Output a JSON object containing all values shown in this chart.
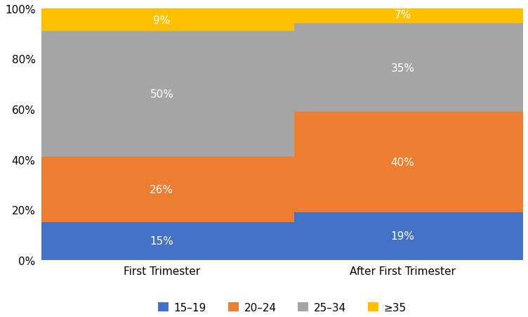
{
  "categories": [
    "First Trimester",
    "After First Trimester"
  ],
  "series": {
    "15–19": [
      15,
      19
    ],
    "20–24": [
      26,
      40
    ],
    "25–34": [
      50,
      35
    ],
    "≥35": [
      9,
      7
    ]
  },
  "colors": {
    "15–19": "#4472C4",
    "20–24": "#ED7D31",
    "25–34": "#A5A5A5",
    "≥35": "#FFC000"
  },
  "legend_labels": [
    "15–19",
    "20–24",
    "25–34",
    "≥35"
  ],
  "ylim": [
    0,
    100
  ],
  "yticks": [
    0,
    20,
    40,
    60,
    80,
    100
  ],
  "ytick_labels": [
    "0%",
    "20%",
    "40%",
    "60%",
    "80%",
    "100%"
  ],
  "bar_width": 0.55,
  "bar_positions": [
    0.25,
    0.75
  ],
  "xlim": [
    0.0,
    1.0
  ],
  "label_color": "white",
  "label_fontsize": 11,
  "legend_fontsize": 11,
  "tick_fontsize": 11,
  "background_color": "#ffffff",
  "grid_color": "#d0d0d0",
  "connector_color": "#a0a0a0",
  "connector_linewidth": 1.5
}
